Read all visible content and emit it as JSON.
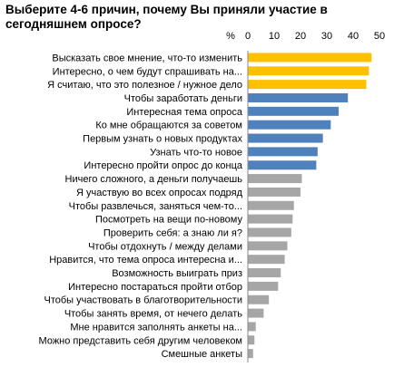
{
  "chart_data": {
    "type": "bar",
    "orientation": "horizontal",
    "title": "Выберите 4-6 причин, почему Вы приняли участие в\nсегодняшнем опросе?",
    "unit_label": "%",
    "xlim": [
      0,
      50
    ],
    "x_ticks": [
      "0",
      "10",
      "20",
      "30",
      "40",
      "50"
    ],
    "grid": false,
    "categories": [
      "Высказать свое мнение, что-то изменить",
      "Интересно, о чем будут спрашивать на...",
      "Я считаю, что это полезное / нужное дело",
      "Чтобы заработать деньги",
      "Интересная тема опроса",
      "Ко мне обращаются за советом",
      "Первым узнать о новых продуктах",
      "Узнать что-то новое",
      "Интересно пройти опрос до конца",
      "Ничего сложного, а деньги получаешь",
      "Я участвую во всех опросах подряд",
      "Чтобы развлечься, заняться чем-то...",
      "Посмотреть на вещи по-новому",
      "Проверить себя: а знаю ли я?",
      "Чтобы отдохнуть / между делами",
      "Нравится, что тема опроса интересна и...",
      "Возможность выиграть приз",
      "Интересно постараться пройти отбор",
      "Чтобы участвовать в благотворительности",
      "Чтобы занять время, от нечего делать",
      "Мне нравится заполнять анкеты на...",
      "Можно представить себя другим человеком",
      "Смешные анкеты"
    ],
    "values": [
      47,
      46,
      45,
      38,
      34.5,
      31.5,
      28.5,
      26.5,
      26,
      20.5,
      20,
      17.5,
      17,
      16.5,
      15,
      14,
      12.5,
      11.5,
      8,
      6,
      3,
      2.5,
      2
    ],
    "bar_colors": [
      "#FFC000",
      "#FFC000",
      "#FFC000",
      "#4F81BD",
      "#4F81BD",
      "#4F81BD",
      "#4F81BD",
      "#4F81BD",
      "#4F81BD",
      "#A6A6A6",
      "#A6A6A6",
      "#A6A6A6",
      "#A6A6A6",
      "#A6A6A6",
      "#A6A6A6",
      "#A6A6A6",
      "#A6A6A6",
      "#A6A6A6",
      "#A6A6A6",
      "#A6A6A6",
      "#A6A6A6",
      "#A6A6A6",
      "#A6A6A6"
    ]
  }
}
